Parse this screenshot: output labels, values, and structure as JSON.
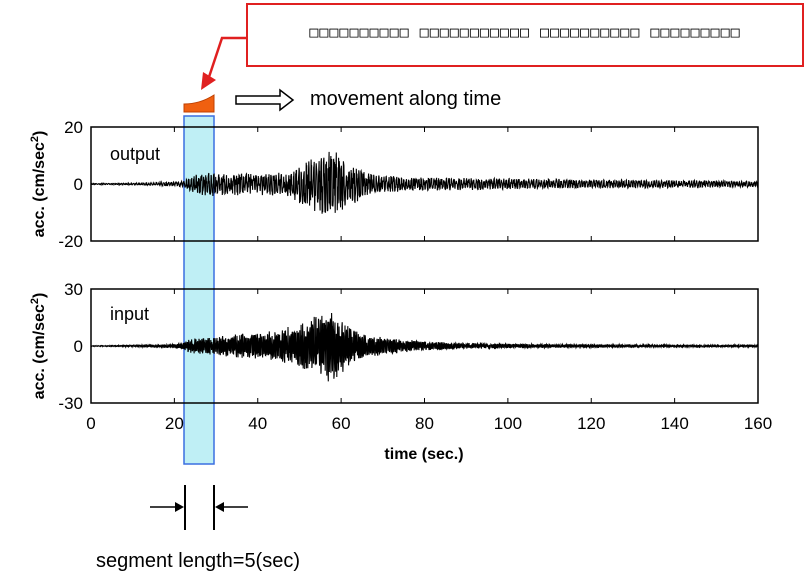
{
  "callout": {
    "text": "□□□□□□□□□□ □□□□□□□□□□□ □□□□□□□□□□ □□□□□□□□□"
  },
  "annotations": {
    "movement": "movement along time",
    "segment": "segment length=5(sec)"
  },
  "colors": {
    "callout_border": "#e02020",
    "window_fill": "#bfeff5",
    "window_border": "#3a6fe0",
    "wedge": "#f06010",
    "signal": "#000000"
  },
  "chart_data": [
    {
      "type": "line",
      "name_label": "output",
      "ylabel": "acc. (cm/sec",
      "ylabel_sup": "2",
      "ylabel_close": ")",
      "xlim": [
        0,
        160
      ],
      "ylim": [
        -20,
        20
      ],
      "yticks": [
        "20",
        "0",
        "-20"
      ],
      "envelope": [
        [
          0,
          0.2
        ],
        [
          10,
          0.3
        ],
        [
          20,
          0.8
        ],
        [
          22,
          1
        ],
        [
          24,
          3
        ],
        [
          28,
          4.5
        ],
        [
          34,
          4
        ],
        [
          40,
          4
        ],
        [
          44,
          4
        ],
        [
          48,
          5
        ],
        [
          52,
          9
        ],
        [
          55,
          11
        ],
        [
          58,
          12.5
        ],
        [
          60,
          10
        ],
        [
          62,
          8
        ],
        [
          66,
          4
        ],
        [
          70,
          3
        ],
        [
          76,
          2.5
        ],
        [
          90,
          2.2
        ],
        [
          100,
          2
        ],
        [
          120,
          1.6
        ],
        [
          140,
          1.4
        ],
        [
          160,
          1.1
        ]
      ],
      "period": 0.6
    },
    {
      "type": "line",
      "name_label": "input",
      "ylabel": "acc. (cm/sec",
      "ylabel_sup": "2",
      "ylabel_close": ")",
      "xlabel": "time (sec.)",
      "xlim": [
        0,
        160
      ],
      "ylim": [
        -30,
        30
      ],
      "yticks": [
        "30",
        "0",
        "-30"
      ],
      "xticks": [
        "0",
        "20",
        "40",
        "60",
        "80",
        "100",
        "120",
        "140",
        "160"
      ],
      "envelope": [
        [
          0,
          0.2
        ],
        [
          10,
          0.5
        ],
        [
          20,
          1
        ],
        [
          22,
          2
        ],
        [
          24,
          4
        ],
        [
          30,
          5
        ],
        [
          38,
          7
        ],
        [
          44,
          8
        ],
        [
          50,
          12
        ],
        [
          55,
          17
        ],
        [
          58,
          20
        ],
        [
          60,
          15
        ],
        [
          62,
          10
        ],
        [
          66,
          6
        ],
        [
          72,
          4
        ],
        [
          80,
          2.5
        ],
        [
          90,
          1.5
        ],
        [
          110,
          1
        ],
        [
          140,
          0.7
        ],
        [
          160,
          0.6
        ]
      ],
      "period": 0.35
    }
  ]
}
